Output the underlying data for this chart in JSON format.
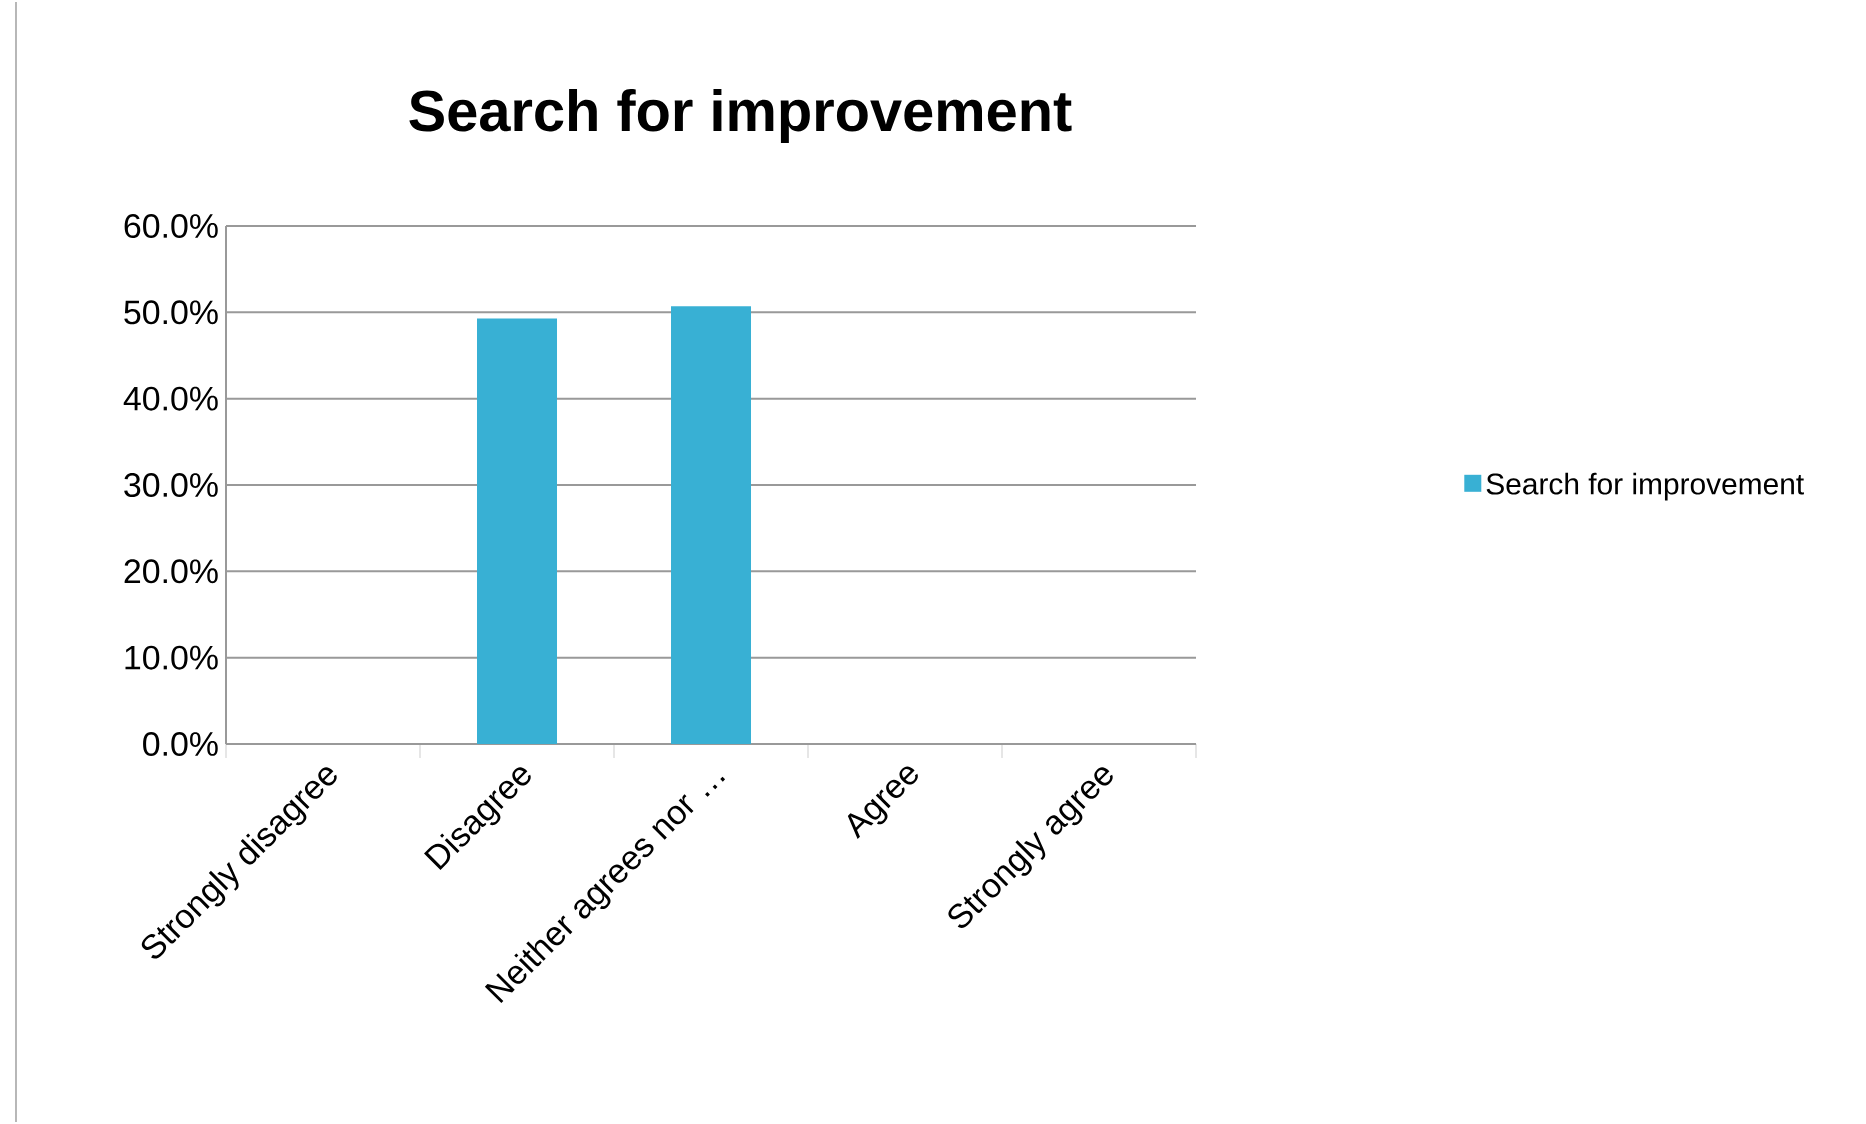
{
  "chart_data": {
    "type": "bar",
    "title": "Search for improvement",
    "categories": [
      "Strongly disagree",
      "Disagree",
      "Neither agrees nor …",
      "Agree",
      "Strongly agree"
    ],
    "series": [
      {
        "name": "Search for improvement",
        "color": "#38b0d4",
        "values": [
          0,
          49.3,
          50.7,
          0,
          0
        ]
      }
    ],
    "ylim": [
      0,
      60
    ],
    "yticks": [
      {
        "value": 0,
        "label": "0.0%"
      },
      {
        "value": 10,
        "label": "10.0%"
      },
      {
        "value": 20,
        "label": "20.0%"
      },
      {
        "value": 30,
        "label": "30.0%"
      },
      {
        "value": 40,
        "label": "40.0%"
      },
      {
        "value": 50,
        "label": "50.0%"
      },
      {
        "value": 60,
        "label": "60.0%"
      }
    ],
    "grid": "y",
    "legend": "right"
  }
}
